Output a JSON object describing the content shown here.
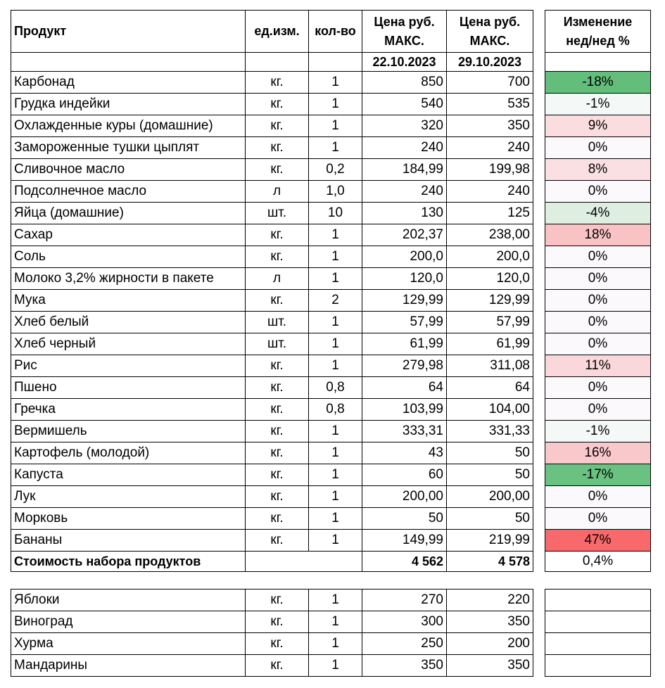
{
  "header": {
    "product": "Продукт",
    "unit": "ед.изм.",
    "qty": "кол-во",
    "price1_line1": "Цена руб.",
    "price1_line2": "МАКС.",
    "price2_line1": "Цена руб.",
    "price2_line2": "МАКС.",
    "change_line1": "Изменение",
    "change_line2": "нед/нед %",
    "date1": "22.10.2023",
    "date2": "29.10.2023"
  },
  "rows": [
    {
      "name": "Карбонад",
      "unit": "кг.",
      "qty": "1",
      "p1": "850",
      "p2": "700",
      "change": "-18%",
      "color": "#63be7b"
    },
    {
      "name": "Грудка индейки",
      "unit": "кг.",
      "qty": "1",
      "p1": "540",
      "p2": "535",
      "change": "-1%",
      "color": "#f4f8f6"
    },
    {
      "name": "Охлажденные куры (домашние)",
      "unit": "кг.",
      "qty": "1",
      "p1": "320",
      "p2": "350",
      "change": "9%",
      "color": "#fbdde0"
    },
    {
      "name": "Замороженные тушки цыплят",
      "unit": "кг.",
      "qty": "1",
      "p1": "240",
      "p2": "240",
      "change": "0%",
      "color": "#fbf9fc"
    },
    {
      "name": "Сливочное масло",
      "unit": "кг.",
      "qty": "0,2",
      "p1": "184,99",
      "p2": "199,98",
      "change": "8%",
      "color": "#fbe0e3"
    },
    {
      "name": "Подсолнечное масло",
      "unit": "л",
      "qty": "1,0",
      "p1": "240",
      "p2": "240",
      "change": "0%",
      "color": "#fbf9fc"
    },
    {
      "name": "Яйца (домашние)",
      "unit": "шт.",
      "qty": "10",
      "p1": "130",
      "p2": "125",
      "change": "-4%",
      "color": "#deefe2"
    },
    {
      "name": "Сахар",
      "unit": "кг.",
      "qty": "1",
      "p1": "202,37",
      "p2": "238,00",
      "change": "18%",
      "color": "#f9c3c6"
    },
    {
      "name": "Соль",
      "unit": "кг.",
      "qty": "1",
      "p1": "200,0",
      "p2": "200,0",
      "change": "0%",
      "color": "#fbf9fc"
    },
    {
      "name": "Молоко 3,2% жирности в пакете",
      "unit": "л",
      "qty": "1",
      "p1": "120,0",
      "p2": "120,0",
      "change": "0%",
      "color": "#fbf9fc"
    },
    {
      "name": "Мука",
      "unit": "кг.",
      "qty": "2",
      "p1": "129,99",
      "p2": "129,99",
      "change": "0%",
      "color": "#fbf9fc"
    },
    {
      "name": "Хлеб белый",
      "unit": "шт.",
      "qty": "1",
      "p1": "57,99",
      "p2": "57,99",
      "change": "0%",
      "color": "#fbf9fc"
    },
    {
      "name": "Хлеб черный",
      "unit": "шт.",
      "qty": "1",
      "p1": "61,99",
      "p2": "61,99",
      "change": "0%",
      "color": "#fbf9fc"
    },
    {
      "name": "Рис",
      "unit": "кг.",
      "qty": "1",
      "p1": "279,98",
      "p2": "311,08",
      "change": "11%",
      "color": "#fad7da"
    },
    {
      "name": "Пшено",
      "unit": "кг.",
      "qty": "0,8",
      "p1": "64",
      "p2": "64",
      "change": "0%",
      "color": "#fbf9fc"
    },
    {
      "name": "Гречка",
      "unit": "кг.",
      "qty": "0,8",
      "p1": "103,99",
      "p2": "104,00",
      "change": "0%",
      "color": "#fbf9fc"
    },
    {
      "name": "Вермишель",
      "unit": "кг.",
      "qty": "1",
      "p1": "333,31",
      "p2": "331,33",
      "change": "-1%",
      "color": "#f4f8f6"
    },
    {
      "name": "Картофель (молодой)",
      "unit": "кг.",
      "qty": "1",
      "p1": "43",
      "p2": "50",
      "change": "16%",
      "color": "#f9c8cb"
    },
    {
      "name": "Капуста",
      "unit": "кг.",
      "qty": "1",
      "p1": "60",
      "p2": "50",
      "change": "-17%",
      "color": "#6ac282"
    },
    {
      "name": "Лук",
      "unit": "кг.",
      "qty": "1",
      "p1": "200,00",
      "p2": "200,00",
      "change": "0%",
      "color": "#fbf9fc"
    },
    {
      "name": "Морковь",
      "unit": "кг.",
      "qty": "1",
      "p1": "50",
      "p2": "50",
      "change": "0%",
      "color": "#fbf9fc"
    },
    {
      "name": "Бананы",
      "unit": "кг.",
      "qty": "1",
      "p1": "149,99",
      "p2": "219,99",
      "change": "47%",
      "color": "#f8696b"
    }
  ],
  "total": {
    "name": "Стоимость набора продуктов",
    "p1": "4 562",
    "p2": "4 578",
    "change": "0,4%"
  },
  "extra_rows": [
    {
      "name": "Яблоки",
      "unit": "кг.",
      "qty": "1",
      "p1": "270",
      "p2": "220"
    },
    {
      "name": "Виноград",
      "unit": "кг.",
      "qty": "1",
      "p1": "300",
      "p2": "350"
    },
    {
      "name": "Хурма",
      "unit": "кг.",
      "qty": "1",
      "p1": "250",
      "p2": "200"
    },
    {
      "name": "Мандарины",
      "unit": "кг.",
      "qty": "1",
      "p1": "350",
      "p2": "350"
    }
  ]
}
